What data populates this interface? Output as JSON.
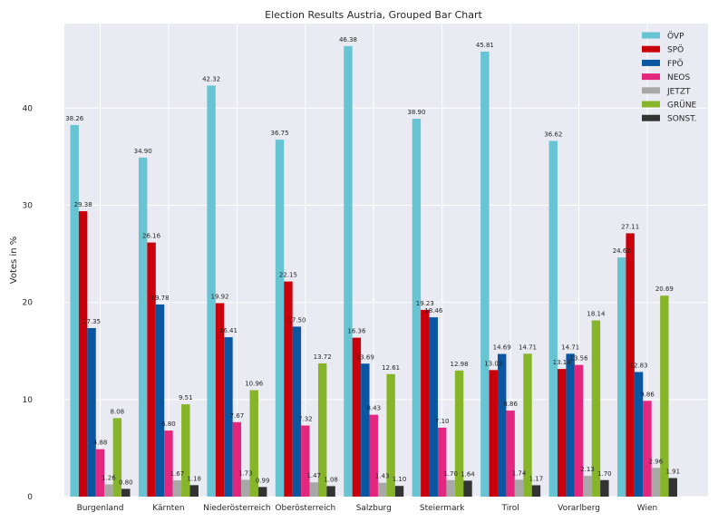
{
  "chart_data": {
    "type": "bar",
    "title": "Election Results Austria, Grouped Bar Chart",
    "xlabel": "",
    "ylabel": "Votes in %",
    "ylim": [
      0,
      48.7
    ],
    "yticks": [
      0,
      10,
      20,
      30,
      40
    ],
    "grid": true,
    "legend_position": "top-right",
    "categories": [
      "Burgenland",
      "Kärnten",
      "Niederösterreich",
      "Oberösterreich",
      "Salzburg",
      "Steiermark",
      "Tirol",
      "Vorarlberg",
      "Wien"
    ],
    "series": [
      {
        "name": "ÖVP",
        "color": "#67c4d3",
        "values": [
          38.26,
          34.9,
          42.32,
          36.75,
          46.38,
          38.9,
          45.81,
          36.62,
          24.62
        ],
        "labels": [
          "38.26",
          "34.90",
          "42.32",
          "36.75",
          "46.38",
          "38.90",
          "45.81",
          "36.62",
          "24.62"
        ]
      },
      {
        "name": "SPÖ",
        "color": "#c9000b",
        "values": [
          29.38,
          26.16,
          19.92,
          22.15,
          16.36,
          19.23,
          13.03,
          13.14,
          27.11
        ],
        "labels": [
          "29.38",
          "26.16",
          "19.92",
          "22.15",
          "16.36",
          "19.23",
          "13.03",
          "13.14",
          "27.11"
        ]
      },
      {
        "name": "FPÖ",
        "color": "#0a56a1",
        "values": [
          17.35,
          19.78,
          16.41,
          17.5,
          13.69,
          18.46,
          14.69,
          14.71,
          12.83
        ],
        "labels": [
          "17.35",
          "19.78",
          "16.41",
          "17.50",
          "13.69",
          "18.46",
          "14.69",
          "14.71",
          "12.83"
        ]
      },
      {
        "name": "NEOS",
        "color": "#e3267e",
        "values": [
          4.88,
          6.8,
          7.67,
          7.32,
          8.43,
          7.1,
          8.86,
          13.56,
          9.86
        ],
        "labels": [
          "4.88",
          "6.80",
          "7.67",
          "7.32",
          "8.43",
          "7.10",
          "8.86",
          "13.56",
          "9.86"
        ]
      },
      {
        "name": "JETZT",
        "color": "#a8a8a8",
        "values": [
          1.26,
          1.67,
          1.73,
          1.47,
          1.43,
          1.7,
          1.74,
          2.13,
          2.96
        ],
        "labels": [
          "1.26",
          "1.67",
          "1.73",
          "1.47",
          "1.43",
          "1.70",
          "1.74",
          "2.13",
          "2.96"
        ]
      },
      {
        "name": "GRÜNE",
        "color": "#87b52a",
        "values": [
          8.08,
          9.51,
          10.96,
          13.72,
          12.61,
          12.98,
          14.71,
          18.14,
          20.69
        ],
        "labels": [
          "8.08",
          "9.51",
          "10.96",
          "13.72",
          "12.61",
          "12.98",
          "14.71",
          "18.14",
          "20.69"
        ]
      },
      {
        "name": "SONST.",
        "color": "#333333",
        "values": [
          0.8,
          1.18,
          0.99,
          1.08,
          1.1,
          1.64,
          1.17,
          1.7,
          1.91
        ],
        "labels": [
          "0.80",
          "1.18",
          "0.99",
          "1.08",
          "1.10",
          "1.64",
          "1.17",
          "1.70",
          "1.91"
        ]
      }
    ]
  }
}
